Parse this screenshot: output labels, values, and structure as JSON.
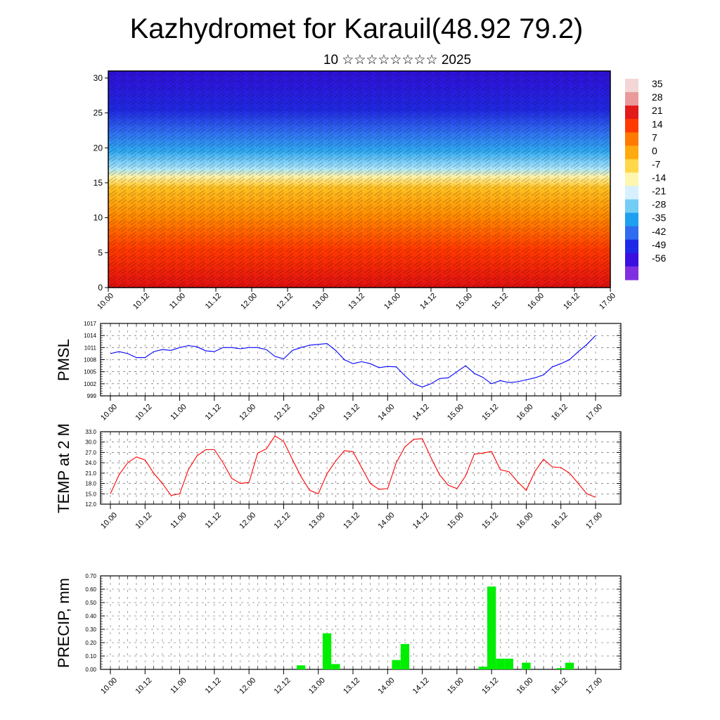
{
  "title": "Kazhydromet for Karauil(48.92 79.2)",
  "subtitle": "10 ☆☆☆☆☆☆☆☆ 2025",
  "time_ticks": [
    "10.00",
    "10.12",
    "11.00",
    "11.12",
    "12.00",
    "12.12",
    "13.00",
    "13.12",
    "14.00",
    "14.12",
    "15.00",
    "15.12",
    "16.00",
    "16.12",
    "17.00"
  ],
  "chart_data": [
    {
      "type": "heatmap",
      "name": "cross-section",
      "y_ticks": [
        "0",
        "5",
        "10",
        "15",
        "20",
        "25",
        "30"
      ],
      "ylim": [
        0,
        31
      ],
      "x": [
        "10.00",
        "17.00"
      ],
      "colorbar": {
        "labels": [
          "35",
          "28",
          "21",
          "14",
          "7",
          "0",
          "-7",
          "-14",
          "-21",
          "-28",
          "-35",
          "-42",
          "-49",
          "-56"
        ],
        "colors": [
          "#f4d6d6",
          "#ea9a9a",
          "#e31a1a",
          "#ff3a00",
          "#ff7a00",
          "#ffaa10",
          "#ffd84a",
          "#fff6b0",
          "#d6f0ff",
          "#74cdf5",
          "#1ea0f0",
          "#2f6cf0",
          "#1f2ae8",
          "#3a10e0",
          "#8030e0"
        ]
      }
    },
    {
      "type": "line",
      "ylabel": "PMSL",
      "ylim": [
        999,
        1017
      ],
      "y_ticks": [
        "1017",
        "1014",
        "1011",
        "1008",
        "1005",
        "1002",
        "999"
      ],
      "color": "#0000ff",
      "values": [
        1009.5,
        1010,
        1009.5,
        1008.5,
        1008.5,
        1010,
        1010.5,
        1010.3,
        1011,
        1011.5,
        1011.2,
        1010.2,
        1010,
        1011,
        1011,
        1010.7,
        1011,
        1011,
        1010.5,
        1008.8,
        1008.2,
        1010.3,
        1011,
        1011.6,
        1011.8,
        1012,
        1010.3,
        1008,
        1007,
        1007.5,
        1007,
        1006,
        1006.3,
        1006.2,
        1004,
        1002,
        1001.2,
        1002,
        1003.3,
        1003.5,
        1005,
        1006.5,
        1004.6,
        1003.6,
        1002,
        1002.8,
        1002.3,
        1002.5,
        1003,
        1003.5,
        1004.2,
        1006.2,
        1007,
        1008,
        1010,
        1011.8,
        1014
      ]
    },
    {
      "type": "line",
      "ylabel": "TEMP at 2 M",
      "ylim": [
        12,
        33
      ],
      "y_ticks": [
        "33.0",
        "30.0",
        "27.0",
        "24.0",
        "21.0",
        "18.0",
        "15.0",
        "12.0"
      ],
      "color": "#ff0000",
      "values": [
        15,
        20.5,
        24,
        25.7,
        24.8,
        21,
        18,
        14.5,
        15,
        22,
        26,
        27.8,
        27.8,
        24,
        19.5,
        18,
        18.3,
        26.8,
        28,
        31.8,
        30.2,
        25,
        20,
        16,
        15,
        20.8,
        24.5,
        27.5,
        27.2,
        22.6,
        18,
        16.3,
        16.5,
        24,
        28.6,
        30.8,
        31,
        25.5,
        20.5,
        17.5,
        16.5,
        20.2,
        26.5,
        26.8,
        27.3,
        22,
        21.4,
        18.5,
        16,
        21.5,
        25,
        22.8,
        22.6,
        21,
        18,
        15,
        14
      ]
    },
    {
      "type": "bar",
      "ylabel": "PRECIP, mm",
      "ylim": [
        0,
        0.7
      ],
      "y_ticks": [
        "0.70",
        "0.60",
        "0.50",
        "0.40",
        "0.30",
        "0.20",
        "0.10",
        "0.00"
      ],
      "color": "#00ee00",
      "values": [
        0,
        0,
        0,
        0,
        0,
        0,
        0,
        0,
        0,
        0,
        0,
        0,
        0,
        0,
        0,
        0,
        0,
        0,
        0,
        0,
        0,
        0,
        0.03,
        0,
        0,
        0.27,
        0.04,
        0,
        0,
        0,
        0,
        0,
        0,
        0.07,
        0.19,
        0,
        0,
        0,
        0,
        0,
        0,
        0,
        0,
        0.02,
        0.62,
        0.08,
        0.08,
        0,
        0.05,
        0,
        0,
        0,
        0.01,
        0.05,
        0,
        0,
        0
      ]
    }
  ]
}
